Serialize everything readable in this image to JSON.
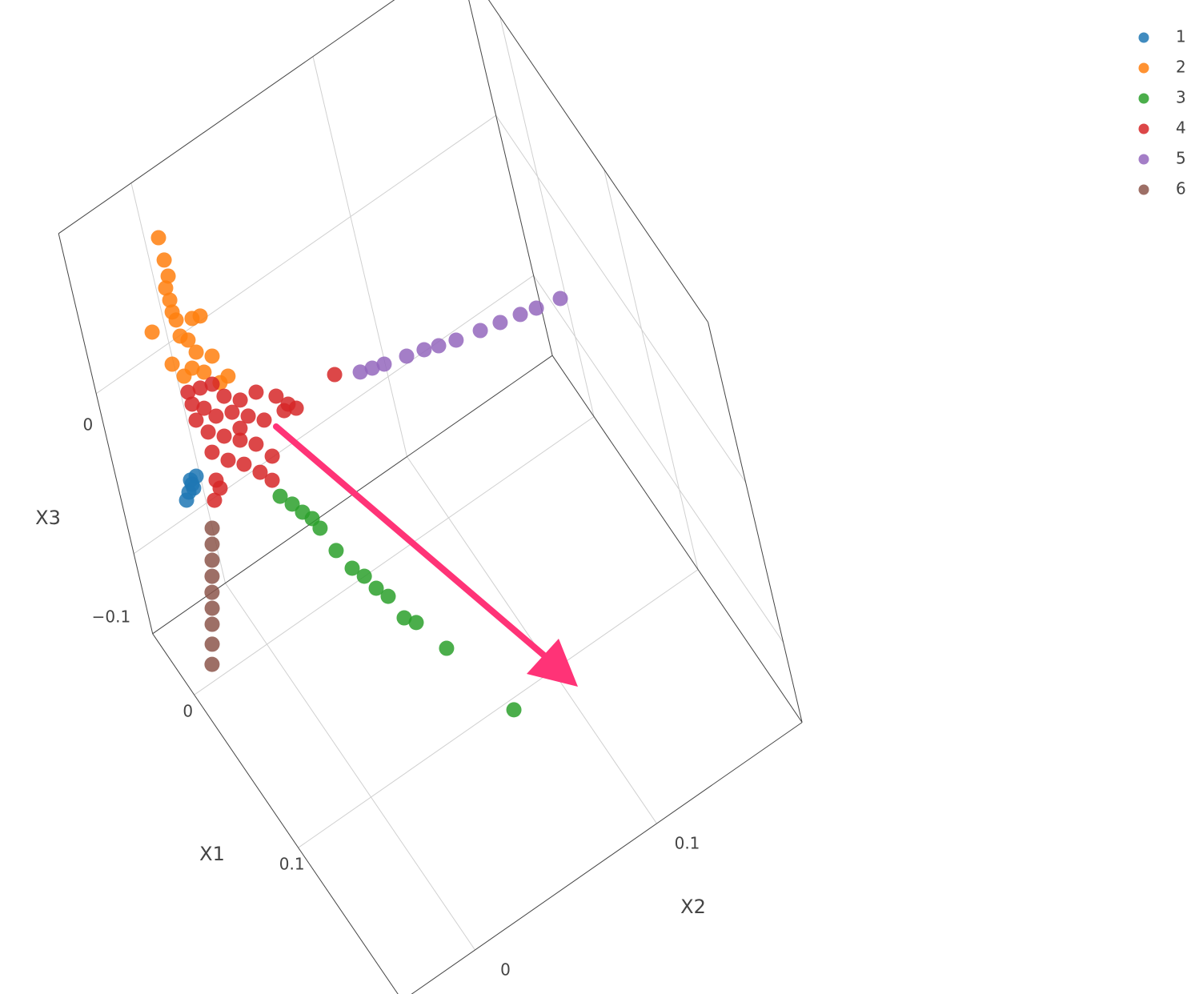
{
  "chart_data": {
    "type": "scatter3d",
    "xlabel": "X1",
    "ylabel": "X2",
    "zlabel": "X3",
    "xlim": [
      -0.04,
      0.2
    ],
    "ylim": [
      -0.04,
      0.18
    ],
    "zlim": [
      -0.15,
      0.1
    ],
    "xticks": [
      0,
      0.1
    ],
    "yticks": [
      0,
      0.1
    ],
    "zticks": [
      0,
      {
        "value": -0.1,
        "label": "−0.1"
      }
    ],
    "grid": true,
    "legend": "top-right",
    "series": [
      {
        "name": "1",
        "color": "#1f77b4",
        "x": [
          0,
          0,
          0,
          0,
          0,
          0
        ],
        "y": [
          -0.0148,
          -0.0176,
          -0.02,
          -0.022,
          -0.0179,
          -0.0173
        ],
        "z": [
          -0.0333,
          -0.0361,
          -0.0392,
          -0.0426,
          -0.0333,
          -0.0388
        ]
      },
      {
        "name": "2",
        "color": "#ff7f0e",
        "x": [
          0,
          0,
          0,
          0,
          0,
          0,
          0,
          0,
          0,
          0,
          0,
          0,
          0,
          0,
          0,
          0,
          0,
          0,
          0,
          0
        ],
        "y": [
          -0.0061,
          -0.0059,
          -0.0058,
          -0.0083,
          -0.0077,
          -0.0079,
          -0.0069,
          0.0008,
          0.0049,
          -0.0196,
          -0.0068,
          -0.0035,
          -0.001,
          0.0061,
          -0.0137,
          -0.0047,
          0.0114,
          0.0005,
          -0.0094,
          0.0069
        ],
        "z": [
          0.1088,
          0.0947,
          0.0846,
          0.0791,
          0.0711,
          0.0638,
          0.058,
          0.0529,
          0.0512,
          0.0605,
          0.0479,
          0.0428,
          0.0333,
          0.0252,
          0.0358,
          0.0262,
          0.0085,
          0.0196,
          0.0249,
          0.008
        ]
      },
      {
        "name": "3",
        "color": "#2ca02c",
        "x": [
          0.0624,
          0.0696,
          0.0764,
          0.0822,
          0.0889,
          0.1038,
          0.1166,
          0.1239,
          0.1329,
          0.1402,
          0.1547,
          0.1605,
          0.1813,
          0.2294
        ],
        "y": [
          0.0026,
          0.0051,
          0.0069,
          0.0089,
          0.0094,
          0.0097,
          0.0112,
          0.0137,
          0.0151,
          0.0175,
          0.018,
          0.0213,
          0.0261,
          0.0356
        ],
        "z": [
          0,
          0,
          0,
          0,
          0,
          0,
          0,
          0,
          0,
          0,
          0,
          0,
          0,
          0
        ]
      },
      {
        "name": "4",
        "color": "#d62728",
        "x": [
          0,
          0,
          0,
          0,
          0,
          0,
          0,
          0,
          0,
          0,
          0,
          0,
          0,
          0,
          0,
          0,
          0,
          0,
          0,
          0,
          0,
          0,
          0,
          0,
          0,
          0,
          0,
          0,
          0,
          0,
          0,
          0
        ],
        "y": [
          -0.0093,
          -0.0031,
          0.003,
          0.0073,
          0.0145,
          0.0229,
          0.0319,
          0.0367,
          0.0401,
          0.062,
          -0.0035,
          0.0013,
          0.0093,
          0.0165,
          0.0236,
          -0.0086,
          -0.0042,
          0.0029,
          0.01,
          0.0171,
          0.0234,
          -0.0046,
          0.0021,
          0.0092,
          0.0159,
          0.0207,
          -0.0058,
          -0.0088,
          -0.0048,
          0.0341,
          -0.0087,
          0.0113
        ],
        "z": [
          0.0148,
          0.0125,
          0.0101,
          -0.0008,
          -0.0089,
          -0.0106,
          -0.0202,
          -0.029,
          -0.0342,
          -0.0305,
          0.0002,
          -0.0085,
          -0.0124,
          -0.0205,
          -0.0286,
          -0.0032,
          -0.0141,
          -0.0223,
          -0.0304,
          -0.0385,
          -0.051,
          -0.0264,
          -0.0367,
          -0.0448,
          -0.0551,
          -0.0639,
          -0.0429,
          -0.0531,
          -0.0487,
          -0.031,
          0.0069,
          -0.024
        ]
      },
      {
        "name": "5",
        "color": "#9467bd",
        "x": [
          0,
          0,
          0,
          0,
          0,
          0,
          0,
          0,
          0,
          0,
          0,
          0
        ],
        "y": [
          0.0744,
          0.0805,
          0.0866,
          0.0981,
          0.1071,
          0.1144,
          0.1233,
          0.1358,
          0.1461,
          0.1565,
          0.1648,
          0.1772
        ],
        "z": [
          -0.0387,
          -0.0411,
          -0.0434,
          -0.0475,
          -0.0506,
          -0.0539,
          -0.0574,
          -0.0613,
          -0.0644,
          -0.0676,
          -0.0702,
          -0.074
        ]
      },
      {
        "name": "6",
        "color": "#8c564b",
        "x": [
          0,
          0,
          0,
          0,
          0,
          0,
          0,
          0,
          0
        ],
        "y": [
          -0.013,
          -0.0148,
          -0.0166,
          -0.0184,
          -0.0202,
          -0.0219,
          -0.0237,
          -0.0259,
          -0.0282
        ],
        "z": [
          -0.0672,
          -0.0758,
          -0.0844,
          -0.093,
          -0.1016,
          -0.1102,
          -0.1188,
          -0.1295,
          -0.1403
        ]
      }
    ]
  }
}
